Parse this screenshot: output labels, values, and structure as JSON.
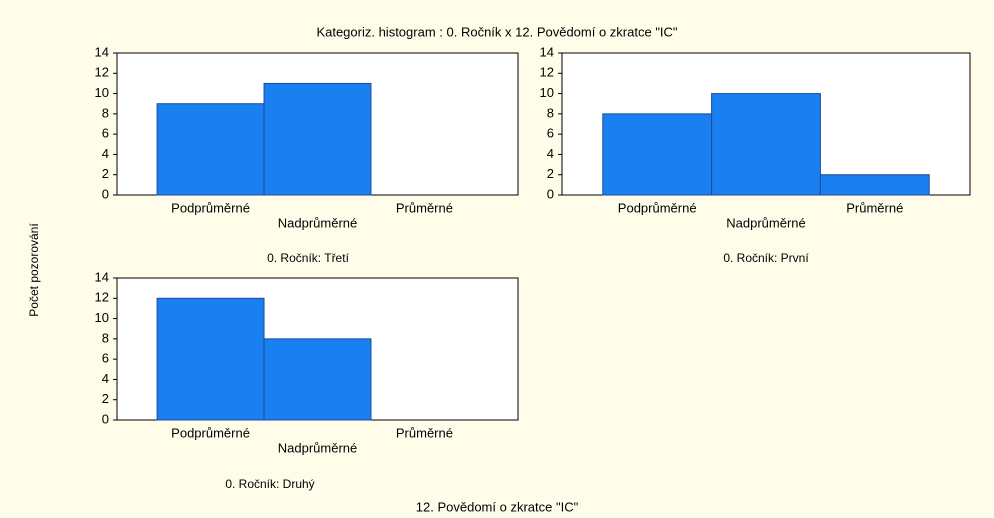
{
  "title": "Kategoriz. histogram : 0. Ročník x 12. Povědomí o zkratce \"IC\"",
  "xlabel": "12. Povědomí o zkratce \"IC\"",
  "ylabel": "Počet pozorování",
  "chart_data": [
    {
      "type": "bar",
      "subtitle": "0. Ročník: Třetí",
      "categories": [
        "Podprůměrné",
        "Nadprůměrné",
        "Průměrné"
      ],
      "values": [
        9,
        11,
        0
      ],
      "color": "#1a7ff0",
      "ylim": [
        0,
        14
      ],
      "yticks": [
        0,
        2,
        4,
        6,
        8,
        10,
        12,
        14
      ]
    },
    {
      "type": "bar",
      "subtitle": "0. Ročník: První",
      "categories": [
        "Podprůměrné",
        "Nadprůměrné",
        "Průměrné"
      ],
      "values": [
        8,
        10,
        2
      ],
      "color": "#1a7ff0",
      "ylim": [
        0,
        14
      ],
      "yticks": [
        0,
        2,
        4,
        6,
        8,
        10,
        12,
        14
      ]
    },
    {
      "type": "bar",
      "subtitle": "0. Ročník: Druhý",
      "categories": [
        "Podprůměrné",
        "Nadprůměrné",
        "Průměrné"
      ],
      "values": [
        12,
        8,
        0
      ],
      "color": "#1a7ff0",
      "ylim": [
        0,
        14
      ],
      "yticks": [
        0,
        2,
        4,
        6,
        8,
        10,
        12,
        14
      ]
    }
  ]
}
